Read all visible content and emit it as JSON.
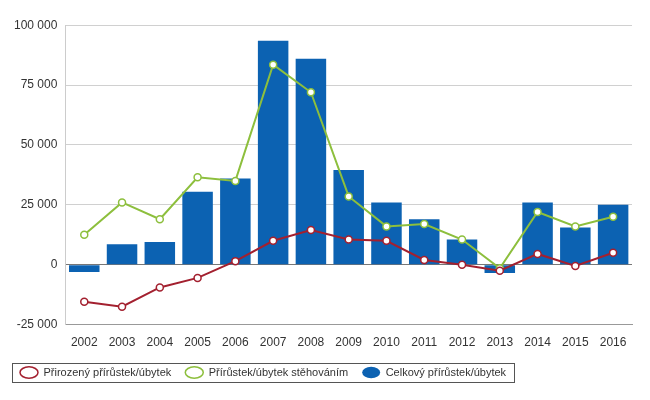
{
  "chart_data": {
    "type": "bar",
    "categories": [
      "2002",
      "2003",
      "2004",
      "2005",
      "2006",
      "2007",
      "2008",
      "2009",
      "2010",
      "2011",
      "2012",
      "2013",
      "2014",
      "2015",
      "2016"
    ],
    "series": [
      {
        "name": "Celkový přírůstek/úbytek",
        "type": "bar",
        "color": "#0c62b2",
        "values": [
          -3000,
          8500,
          9500,
          30500,
          36000,
          93500,
          86000,
          39500,
          26000,
          19000,
          10500,
          -3500,
          26000,
          15500,
          25000
        ]
      },
      {
        "name": "Přirozený přírůstek/úbytek",
        "type": "line",
        "color": "#a3202f",
        "marker": "circle",
        "line_style": "solid",
        "values": [
          -15500,
          -17500,
          -9500,
          -5500,
          1500,
          10000,
          14500,
          10500,
          10000,
          2000,
          0,
          -2500,
          4500,
          -500,
          5000
        ]
      },
      {
        "name": "Přírůstek/úbytek stěhováním",
        "type": "line",
        "color": "#8dbf3d",
        "marker": "circle",
        "line_style": "solid",
        "values": [
          12500,
          26000,
          19000,
          36500,
          35000,
          83500,
          72000,
          28500,
          16000,
          17000,
          10500,
          -1500,
          22000,
          16000,
          20000
        ]
      }
    ],
    "ylim": [
      -25000,
      100000
    ],
    "yticks": [
      {
        "value": -25000,
        "label": "-25 000"
      },
      {
        "value": 0,
        "label": "0"
      },
      {
        "value": 25000,
        "label": "25 000"
      },
      {
        "value": 50000,
        "label": "50 000"
      },
      {
        "value": 75000,
        "label": "75 000"
      },
      {
        "value": 100000,
        "label": "100 000"
      }
    ],
    "grid": true,
    "legend": "bottom"
  }
}
